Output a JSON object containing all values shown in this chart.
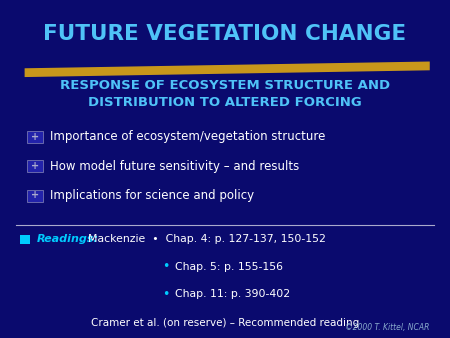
{
  "title": "FUTURE VEGETATION CHANGE",
  "title_color": "#4fc3f7",
  "subtitle": "RESPONSE OF ECOSYSTEM STRUCTURE AND\nDISTRIBUTION TO ALTERED FORCING",
  "subtitle_color": "#4fc3f7",
  "background_color": "#0a0a6e",
  "bullet_color": "#ffffff",
  "bullet_items": [
    "Importance of ecosystem/vegetation structure",
    "How model future sensitivity – and results",
    "Implications for science and policy"
  ],
  "readings_label": "Readings:",
  "readings_author": "Mackenzie",
  "readings_items": [
    "Chap. 4: p. 127-137, 150-152",
    "Chap. 5: p. 155-156",
    "Chap. 11: p. 390-402"
  ],
  "readings_extra": "Cramer et al. (on reserve) – Recommended reading",
  "copyright": "©2000 T. Kittel, NCAR",
  "gold_bar_color": "#d4a017",
  "separator_color": "#aaaacc",
  "readings_bullet_color": "#00ccff"
}
